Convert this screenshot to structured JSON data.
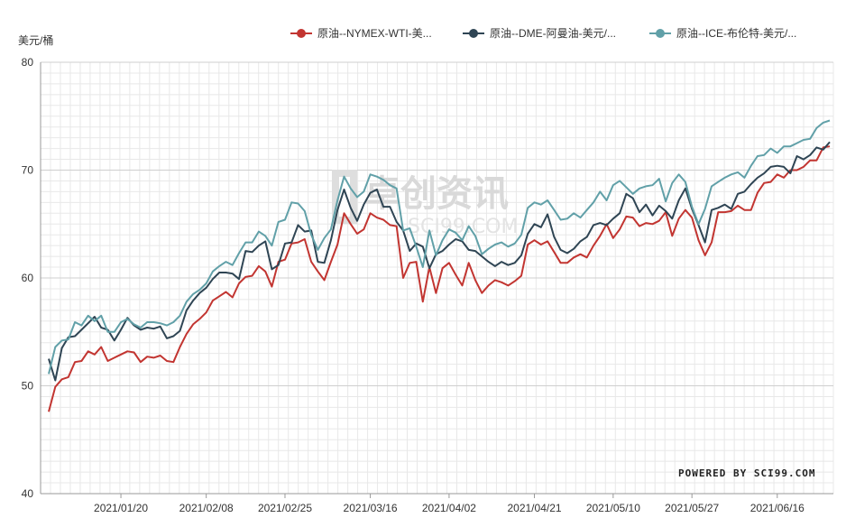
{
  "chart_data": {
    "type": "line",
    "unit_label": "美元/桶",
    "ylim": [
      40,
      80
    ],
    "y_ticks": [
      40,
      50,
      60,
      70,
      80
    ],
    "x_tick_labels": [
      "2021/01/20",
      "2021/02/08",
      "2021/02/25",
      "2021/03/16",
      "2021/04/02",
      "2021/04/21",
      "2021/05/10",
      "2021/05/27",
      "2021/06/16"
    ],
    "grid": true,
    "legend_position": "top",
    "watermark_cn": "卓创资讯",
    "watermark_en": "SCI99.COM",
    "powered_by": "POWERED BY SCI99.COM",
    "series": [
      {
        "name": "原油--NYMEX-WTI-美...",
        "color": "#c23531",
        "values": [
          47.6,
          49.9,
          50.6,
          50.8,
          52.2,
          52.3,
          53.2,
          52.9,
          53.6,
          52.3,
          52.6,
          52.9,
          53.2,
          53.1,
          52.2,
          52.7,
          52.6,
          52.8,
          52.3,
          52.2,
          53.6,
          54.8,
          55.7,
          56.2,
          56.8,
          57.9,
          58.3,
          58.7,
          58.2,
          59.5,
          60.1,
          60.2,
          61.1,
          60.6,
          59.2,
          61.5,
          61.7,
          63.2,
          63.3,
          63.6,
          61.5,
          60.6,
          59.8,
          61.5,
          63.1,
          66.0,
          65.0,
          64.1,
          64.5,
          66.0,
          65.6,
          65.4,
          64.9,
          64.8,
          60.0,
          61.4,
          61.5,
          57.8,
          61.0,
          58.6,
          60.9,
          61.4,
          60.3,
          59.3,
          61.4,
          59.8,
          58.6,
          59.3,
          59.8,
          59.6,
          59.3,
          59.7,
          60.2,
          63.1,
          63.5,
          63.1,
          63.4,
          62.4,
          61.4,
          61.4,
          61.9,
          62.2,
          61.9,
          63.0,
          63.9,
          65.0,
          63.7,
          64.5,
          65.7,
          65.6,
          64.8,
          65.1,
          65.0,
          65.3,
          66.1,
          63.9,
          65.5,
          66.3,
          65.6,
          63.5,
          62.1,
          63.3,
          66.1,
          66.1,
          66.2,
          66.7,
          66.3,
          66.3,
          67.9,
          68.8,
          68.9,
          69.6,
          69.3,
          70.0,
          70.0,
          70.3,
          70.9,
          70.9,
          72.1,
          72.2
        ]
      },
      {
        "name": "原油--DME-阿曼油-美元/...",
        "color": "#2f4554",
        "values": [
          52.5,
          50.5,
          53.5,
          54.5,
          54.6,
          55.2,
          55.8,
          56.4,
          55.4,
          55.2,
          54.2,
          55.2,
          56.3,
          55.6,
          55.2,
          55.4,
          55.3,
          55.5,
          54.4,
          54.6,
          55.1,
          57.0,
          57.9,
          58.6,
          59.1,
          59.9,
          60.5,
          60.5,
          60.4,
          59.9,
          62.5,
          62.4,
          63.0,
          63.4,
          60.8,
          61.2,
          63.2,
          63.3,
          64.9,
          64.3,
          64.4,
          61.5,
          61.4,
          63.5,
          66.3,
          68.2,
          66.5,
          65.3,
          66.8,
          67.9,
          68.2,
          66.6,
          66.6,
          65.2,
          64.4,
          62.5,
          63.2,
          62.9,
          60.9,
          62.2,
          62.5,
          63.1,
          63.6,
          63.4,
          62.6,
          62.5,
          62.0,
          61.5,
          61.1,
          61.5,
          61.2,
          61.4,
          62.1,
          64.1,
          65.0,
          64.7,
          65.9,
          63.8,
          62.6,
          62.3,
          62.7,
          63.4,
          63.8,
          64.9,
          65.1,
          64.9,
          65.5,
          66.0,
          67.8,
          67.4,
          66.1,
          66.8,
          65.8,
          66.7,
          66.2,
          65.5,
          67.2,
          68.3,
          66.4,
          64.9,
          63.3,
          66.3,
          66.5,
          66.8,
          66.4,
          67.8,
          68.0,
          68.7,
          69.3,
          69.7,
          70.3,
          70.4,
          70.3,
          69.7,
          71.3,
          71.0,
          71.4,
          72.1,
          71.9,
          72.6
        ]
      },
      {
        "name": "原油--ICE-布伦特-美元/...",
        "color": "#61a0a8",
        "values": [
          51.1,
          53.6,
          54.2,
          54.3,
          55.9,
          55.6,
          56.5,
          56.0,
          56.5,
          55.0,
          55.0,
          55.9,
          56.2,
          55.7,
          55.4,
          55.9,
          55.9,
          55.8,
          55.6,
          55.9,
          56.5,
          57.8,
          58.5,
          58.9,
          59.5,
          60.6,
          61.1,
          61.5,
          61.2,
          62.3,
          63.3,
          63.3,
          64.3,
          63.9,
          63.0,
          65.2,
          65.4,
          67.0,
          66.9,
          66.2,
          64.0,
          62.6,
          63.7,
          64.5,
          67.2,
          69.4,
          68.3,
          67.5,
          68.0,
          69.6,
          69.4,
          69.1,
          68.6,
          68.3,
          64.4,
          64.6,
          62.9,
          61.0,
          64.4,
          62.1,
          63.5,
          64.5,
          64.2,
          63.5,
          64.8,
          63.9,
          62.2,
          62.7,
          63.1,
          63.3,
          62.9,
          63.2,
          64.0,
          66.5,
          67.0,
          66.8,
          67.2,
          66.3,
          65.4,
          65.5,
          66.0,
          65.6,
          66.3,
          67.0,
          68.0,
          67.2,
          68.6,
          69.0,
          68.4,
          67.8,
          68.3,
          68.5,
          68.6,
          69.2,
          67.1,
          68.8,
          69.6,
          68.9,
          66.6,
          65.0,
          66.4,
          68.5,
          68.9,
          69.3,
          69.6,
          69.8,
          69.3,
          70.4,
          71.3,
          71.4,
          72.0,
          71.6,
          72.2,
          72.2,
          72.5,
          72.8,
          72.9,
          73.9,
          74.4,
          74.6
        ]
      }
    ]
  }
}
